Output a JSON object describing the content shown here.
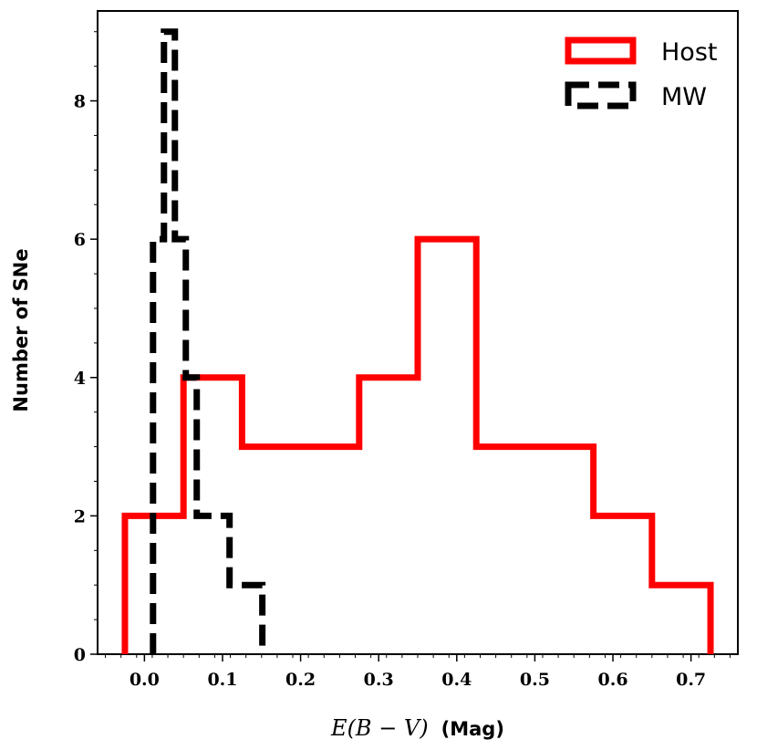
{
  "chart_data": {
    "type": "histogram",
    "xlabel": "E(B − V)",
    "xlabel_unit": "(Mag)",
    "ylabel": "Number of SNe",
    "xlim": [
      -0.06,
      0.76
    ],
    "ylim": [
      0,
      9.3
    ],
    "xticks": [
      "0.0",
      "0.1",
      "0.2",
      "0.3",
      "0.4",
      "0.5",
      "0.6",
      "0.7"
    ],
    "xtick_values": [
      0.0,
      0.1,
      0.2,
      0.3,
      0.4,
      0.5,
      0.6,
      0.7
    ],
    "yticks": [
      "0",
      "2",
      "4",
      "6",
      "8"
    ],
    "ytick_values": [
      0,
      2,
      4,
      6,
      8
    ],
    "legend": {
      "position": "top-right",
      "host_label": "Host",
      "mw_label": "MW"
    },
    "series": [
      {
        "name": "Host",
        "style": "solid",
        "color": "#ff0000",
        "bin_edges": [
          -0.025,
          0.05,
          0.125,
          0.2,
          0.275,
          0.35,
          0.425,
          0.5,
          0.575,
          0.65,
          0.725
        ],
        "counts": [
          2,
          4,
          3,
          3,
          4,
          6,
          3,
          3,
          2,
          1
        ]
      },
      {
        "name": "MW",
        "style": "dashed",
        "color": "#000000",
        "bin_edges": [
          0.011,
          0.025,
          0.039,
          0.053,
          0.067,
          0.081,
          0.095,
          0.109,
          0.123,
          0.137,
          0.151
        ],
        "counts": [
          6,
          9,
          6,
          4,
          2,
          2,
          2,
          1,
          1,
          1
        ]
      }
    ]
  }
}
